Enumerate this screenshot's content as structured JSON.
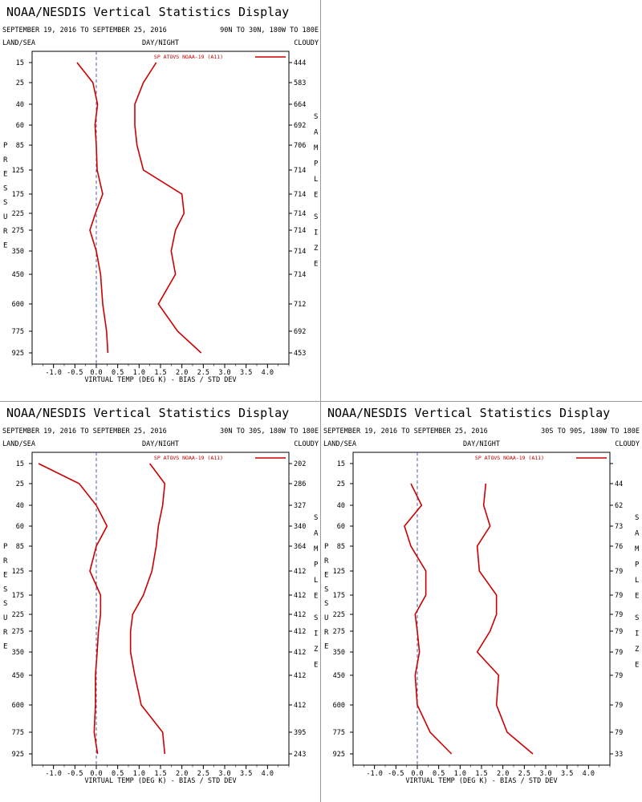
{
  "panels": [
    {
      "title": "NOAA/NESDIS Vertical Statistics Display",
      "date_range": "SEPTEMBER 19, 2016 TO SEPTEMBER 25, 2016",
      "region": "90N TO 30N, 180W TO 180E",
      "land_sea": "LAND/SEA",
      "day_night": "DAY/NIGHT",
      "cloudy": "CLOUDY",
      "ylabel": "PRESSURE",
      "right_label": "SAMPLE SIZE",
      "xlabel": "VIRTUAL TEMP (DEG K) - BIAS / STD DEV",
      "legend": "SP ATOVS NOAA-19 (A11)",
      "color": "#cc0000",
      "chart_data": {
        "type": "line",
        "xlim": [
          -1.5,
          4.5
        ],
        "x_ticks": [
          "-1.0",
          "-0.5",
          "0.0",
          "0.5",
          "1.0",
          "1.5",
          "2.0",
          "2.5",
          "3.0",
          "3.5",
          "4.0"
        ],
        "pressure_levels": [
          "15",
          "25",
          "40",
          "60",
          "85",
          "125",
          "175",
          "225",
          "275",
          "350",
          "450",
          "600",
          "775",
          "925"
        ],
        "sample_size": [
          "444",
          "583",
          "664",
          "692",
          "706",
          "714",
          "714",
          "714",
          "714",
          "714",
          "714",
          "712",
          "692",
          "453"
        ],
        "bias": [
          -0.22,
          -0.08,
          0.03,
          -0.03,
          0.0,
          0.02,
          0.15,
          -0.02,
          -0.15,
          0.0,
          0.1,
          0.15,
          0.24,
          0.27
        ],
        "std_dev": [
          1.35,
          1.1,
          0.9,
          0.9,
          0.95,
          1.1,
          2.0,
          2.05,
          1.85,
          1.75,
          1.85,
          1.45,
          1.9,
          2.45
        ],
        "start_level": [
          "15",
          "15"
        ],
        "bias_start": -0.45,
        "std_start": 1.4
      }
    },
    {
      "title": "NOAA/NESDIS Vertical Statistics Display",
      "date_range": "SEPTEMBER 19, 2016 TO SEPTEMBER 25, 2016",
      "region": "30N TO 30S, 180W TO 180E",
      "land_sea": "LAND/SEA",
      "day_night": "DAY/NIGHT",
      "cloudy": "CLOUDY",
      "ylabel": "PRESSURE",
      "right_label": "SAMPLE SIZE",
      "xlabel": "VIRTUAL TEMP (DEG K) - BIAS / STD DEV",
      "legend": "SP ATOVS NOAA-19 (A11)",
      "color": "#cc0000",
      "chart_data": {
        "type": "line",
        "xlim": [
          -1.5,
          4.5
        ],
        "x_ticks": [
          "-1.0",
          "-0.5",
          "0.0",
          "0.5",
          "1.0",
          "1.5",
          "2.0",
          "2.5",
          "3.0",
          "3.5",
          "4.0"
        ],
        "pressure_levels": [
          "15",
          "25",
          "40",
          "60",
          "85",
          "125",
          "175",
          "225",
          "275",
          "350",
          "450",
          "600",
          "775",
          "925"
        ],
        "sample_size": [
          "202",
          "286",
          "327",
          "340",
          "364",
          "412",
          "412",
          "412",
          "412",
          "412",
          "412",
          "412",
          "395",
          "243"
        ],
        "bias": [
          -1.35,
          -0.4,
          0.0,
          0.25,
          0.0,
          -0.15,
          0.1,
          0.1,
          0.05,
          0.02,
          -0.02,
          -0.02,
          -0.05,
          0.03
        ],
        "std_dev": [
          1.25,
          1.6,
          1.55,
          1.45,
          1.4,
          1.3,
          1.1,
          0.85,
          0.8,
          0.8,
          0.9,
          1.05,
          1.55,
          1.6
        ]
      }
    },
    {
      "title": "NOAA/NESDIS Vertical Statistics Display",
      "date_range": "SEPTEMBER 19, 2016 TO SEPTEMBER 25, 2016",
      "region": "30S TO 90S, 180W TO 180E",
      "land_sea": "LAND/SEA",
      "day_night": "DAY/NIGHT",
      "cloudy": "CLOUDY",
      "ylabel": "PRESSURE",
      "right_label": "SAMPLE SIZE",
      "xlabel": "VIRTUAL TEMP (DEG K) - BIAS / STD DEV",
      "legend": "SP ATOVS NOAA-19 (A11)",
      "color": "#cc0000",
      "chart_data": {
        "type": "line",
        "xlim": [
          -1.5,
          4.5
        ],
        "x_ticks": [
          "-1.0",
          "-0.5",
          "0.0",
          "0.5",
          "1.0",
          "1.5",
          "2.0",
          "2.5",
          "3.0",
          "3.5",
          "4.0"
        ],
        "pressure_levels": [
          "15",
          "25",
          "40",
          "60",
          "85",
          "125",
          "175",
          "225",
          "275",
          "350",
          "450",
          "600",
          "775",
          "925"
        ],
        "sample_size": [
          "",
          "44",
          "62",
          "73",
          "76",
          "79",
          "79",
          "79",
          "79",
          "79",
          "79",
          "79",
          "79",
          "33"
        ],
        "bias": [
          null,
          -0.15,
          0.1,
          -0.3,
          -0.15,
          0.2,
          0.2,
          -0.05,
          0.0,
          0.05,
          -0.05,
          0.0,
          0.3,
          0.8
        ],
        "std_dev": [
          null,
          1.6,
          1.55,
          1.7,
          1.4,
          1.45,
          1.85,
          1.85,
          1.7,
          1.4,
          1.9,
          1.85,
          2.1,
          2.7
        ]
      }
    }
  ]
}
